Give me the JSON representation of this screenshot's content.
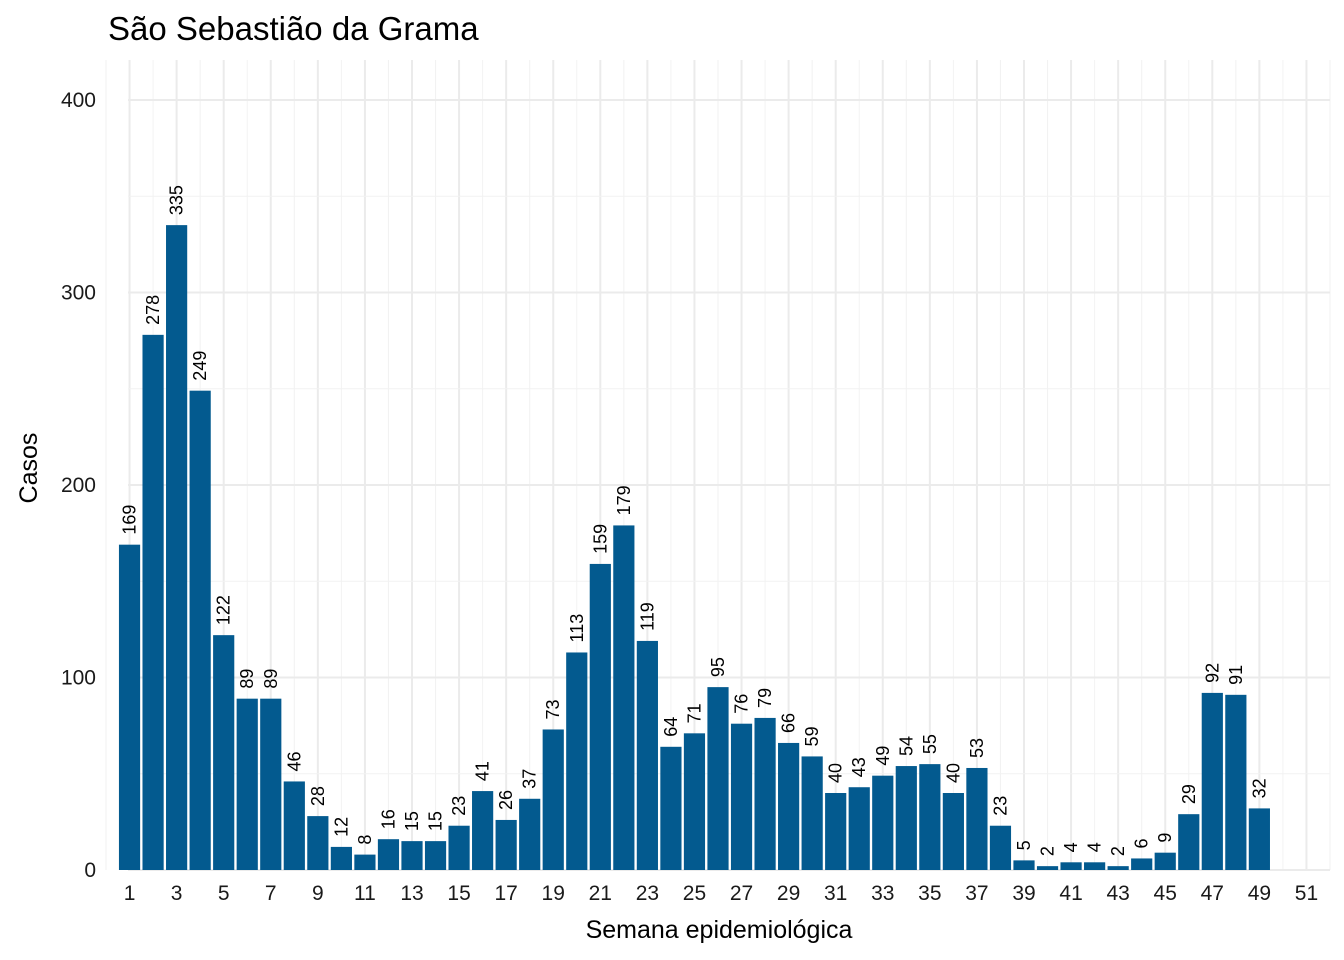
{
  "chart_data": {
    "type": "bar",
    "title": "São Sebastião da Grama",
    "xlabel": "Semana epidemiológica",
    "ylabel": "Casos",
    "categories": [
      1,
      2,
      3,
      4,
      5,
      6,
      7,
      8,
      9,
      10,
      11,
      12,
      13,
      14,
      15,
      16,
      17,
      18,
      19,
      20,
      21,
      22,
      23,
      24,
      25,
      26,
      27,
      28,
      29,
      30,
      31,
      32,
      33,
      34,
      35,
      36,
      37,
      38,
      39,
      40,
      41,
      42,
      43,
      44,
      45,
      46,
      47,
      48,
      49
    ],
    "values": [
      169,
      278,
      335,
      249,
      122,
      89,
      89,
      46,
      28,
      12,
      8,
      16,
      15,
      15,
      23,
      41,
      26,
      37,
      73,
      113,
      159,
      179,
      119,
      64,
      71,
      95,
      76,
      79,
      66,
      59,
      40,
      43,
      49,
      54,
      55,
      40,
      53,
      23,
      5,
      2,
      4,
      4,
      2,
      6,
      9,
      29,
      92,
      91,
      32
    ],
    "xlim": [
      0,
      52
    ],
    "x_ticks": [
      "1",
      "3",
      "5",
      "7",
      "9",
      "11",
      "13",
      "15",
      "17",
      "19",
      "21",
      "23",
      "25",
      "27",
      "29",
      "31",
      "33",
      "35",
      "37",
      "39",
      "41",
      "43",
      "45",
      "47",
      "49",
      "51"
    ],
    "ylim": [
      0,
      400
    ],
    "y_ticks": [
      "0",
      "100",
      "200",
      "300",
      "400"
    ],
    "bar_color": "#035a8f",
    "grid": true
  }
}
